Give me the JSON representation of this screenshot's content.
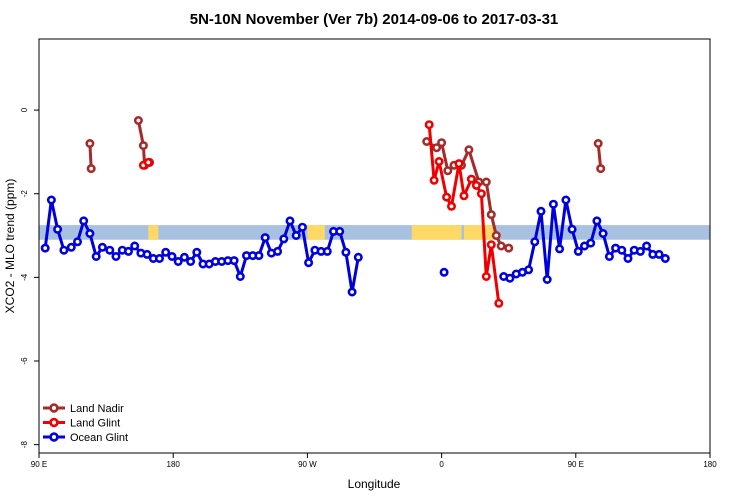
{
  "chart_data": {
    "type": "line",
    "title": "5N-10N November (Ver 7b)   2014-09-06 to 2017-03-31",
    "xlabel": "Longitude",
    "ylabel": "XCO2 - MLO trend (ppm)",
    "xlim": [
      -90,
      180
    ],
    "ylim": [
      -8.2,
      1.7
    ],
    "x_ticks": [
      {
        "value": -90,
        "label": "90 E"
      },
      {
        "value": -36,
        "label": "180"
      },
      {
        "value": 18,
        "label": "90 W"
      },
      {
        "value": 72,
        "label": "0"
      },
      {
        "value": 126,
        "label": "90 E"
      },
      {
        "value": 180,
        "label": "180"
      }
    ],
    "y_ticks": [
      {
        "value": 0,
        "label": "0"
      },
      {
        "value": -2,
        "label": "-2"
      },
      {
        "value": -4,
        "label": "-4"
      },
      {
        "value": -6,
        "label": "-6"
      },
      {
        "value": -8,
        "label": "-8"
      }
    ],
    "grid": false,
    "legend_position": "bottom-left",
    "background_band": {
      "y_range": [
        -3.1,
        -2.75
      ],
      "color": "#a9c1e0",
      "highlight_color": "#ffd966"
    },
    "series": [
      {
        "name": "Land Nadir",
        "color": "#a52a2a",
        "segments": [
          [
            [
              -69.5,
              -0.8
            ],
            [
              -69,
              -1.4
            ]
          ],
          [
            [
              -50,
              -0.25
            ],
            [
              -48,
              -0.85
            ],
            [
              -47.5,
              -1.32
            ],
            [
              -45.5,
              -1.25
            ]
          ],
          [
            [
              66,
              -0.75
            ],
            [
              70,
              -0.9
            ],
            [
              72,
              -0.78
            ],
            [
              74.5,
              -1.45
            ],
            [
              77,
              -1.32
            ],
            [
              80,
              -1.32
            ],
            [
              83,
              -0.95
            ],
            [
              87,
              -1.72
            ],
            [
              90,
              -1.72
            ],
            [
              92,
              -2.5
            ],
            [
              94,
              -3.0
            ],
            [
              96,
              -3.25
            ],
            [
              99,
              -3.3
            ]
          ],
          [
            [
              135,
              -0.8
            ],
            [
              136,
              -1.4
            ]
          ]
        ]
      },
      {
        "name": "Land Glint",
        "color": "#ee0000",
        "segments": [
          [
            [
              -48,
              -1.32
            ],
            [
              -46,
              -1.25
            ]
          ],
          [
            [
              67,
              -0.35
            ],
            [
              69,
              -1.68
            ],
            [
              71,
              -1.23
            ],
            [
              74,
              -2.08
            ],
            [
              76,
              -2.3
            ],
            [
              79,
              -1.28
            ],
            [
              81,
              -2.05
            ],
            [
              84,
              -1.65
            ],
            [
              86,
              -1.8
            ],
            [
              88,
              -2.0
            ],
            [
              90,
              -3.98
            ],
            [
              92,
              -3.22
            ],
            [
              95,
              -4.62
            ]
          ]
        ]
      },
      {
        "name": "Ocean Glint",
        "color": "#0000dd",
        "segments": [
          [
            [
              -87.5,
              -3.3
            ],
            [
              -85,
              -2.15
            ],
            [
              -82.5,
              -2.85
            ],
            [
              -80,
              -3.35
            ],
            [
              -77,
              -3.28
            ],
            [
              -74.5,
              -3.15
            ],
            [
              -72,
              -2.65
            ],
            [
              -69.5,
              -2.95
            ],
            [
              -67,
              -3.5
            ],
            [
              -64.5,
              -3.28
            ],
            [
              -61.5,
              -3.35
            ],
            [
              -59,
              -3.5
            ],
            [
              -56.5,
              -3.35
            ],
            [
              -54,
              -3.38
            ],
            [
              -51.5,
              -3.25
            ],
            [
              -49,
              -3.42
            ],
            [
              -46.5,
              -3.45
            ],
            [
              -44,
              -3.55
            ],
            [
              -41.5,
              -3.55
            ],
            [
              -39,
              -3.4
            ],
            [
              -36.5,
              -3.5
            ],
            [
              -34,
              -3.62
            ],
            [
              -31.5,
              -3.52
            ],
            [
              -29,
              -3.62
            ],
            [
              -26.5,
              -3.4
            ],
            [
              -24,
              -3.68
            ],
            [
              -21.5,
              -3.68
            ],
            [
              -19,
              -3.62
            ],
            [
              -16.5,
              -3.62
            ],
            [
              -14,
              -3.6
            ],
            [
              -11.5,
              -3.6
            ],
            [
              -9,
              -3.98
            ],
            [
              -6.5,
              -3.48
            ],
            [
              -4,
              -3.48
            ],
            [
              -1.5,
              -3.48
            ],
            [
              1,
              -3.05
            ],
            [
              3.5,
              -3.42
            ],
            [
              6,
              -3.38
            ],
            [
              8.5,
              -3.08
            ],
            [
              11,
              -2.65
            ],
            [
              13.5,
              -3.0
            ],
            [
              16,
              -2.8
            ],
            [
              18.5,
              -3.65
            ],
            [
              21,
              -3.35
            ],
            [
              23.5,
              -3.38
            ],
            [
              26,
              -3.38
            ],
            [
              28.5,
              -2.9
            ],
            [
              31,
              -2.9
            ],
            [
              33.5,
              -3.4
            ],
            [
              36,
              -4.35
            ],
            [
              38.5,
              -3.52
            ]
          ],
          [
            [
              73,
              -3.88
            ]
          ],
          [
            [
              97,
              -3.98
            ],
            [
              99.5,
              -4.02
            ],
            [
              102,
              -3.92
            ],
            [
              104.5,
              -3.88
            ],
            [
              107,
              -3.82
            ],
            [
              109.5,
              -3.15
            ],
            [
              112,
              -2.42
            ],
            [
              114.5,
              -4.05
            ],
            [
              117,
              -2.25
            ],
            [
              119.5,
              -3.32
            ],
            [
              122,
              -2.15
            ],
            [
              124.5,
              -2.85
            ],
            [
              127,
              -3.38
            ],
            [
              129.5,
              -3.25
            ],
            [
              132,
              -3.18
            ],
            [
              134.5,
              -2.65
            ],
            [
              137,
              -2.95
            ],
            [
              139.5,
              -3.5
            ],
            [
              142,
              -3.3
            ],
            [
              144.5,
              -3.35
            ],
            [
              147,
              -3.55
            ],
            [
              149.5,
              -3.35
            ],
            [
              152,
              -3.38
            ],
            [
              154.5,
              -3.25
            ],
            [
              157,
              -3.45
            ],
            [
              159.5,
              -3.45
            ],
            [
              162,
              -3.55
            ]
          ]
        ]
      }
    ]
  }
}
